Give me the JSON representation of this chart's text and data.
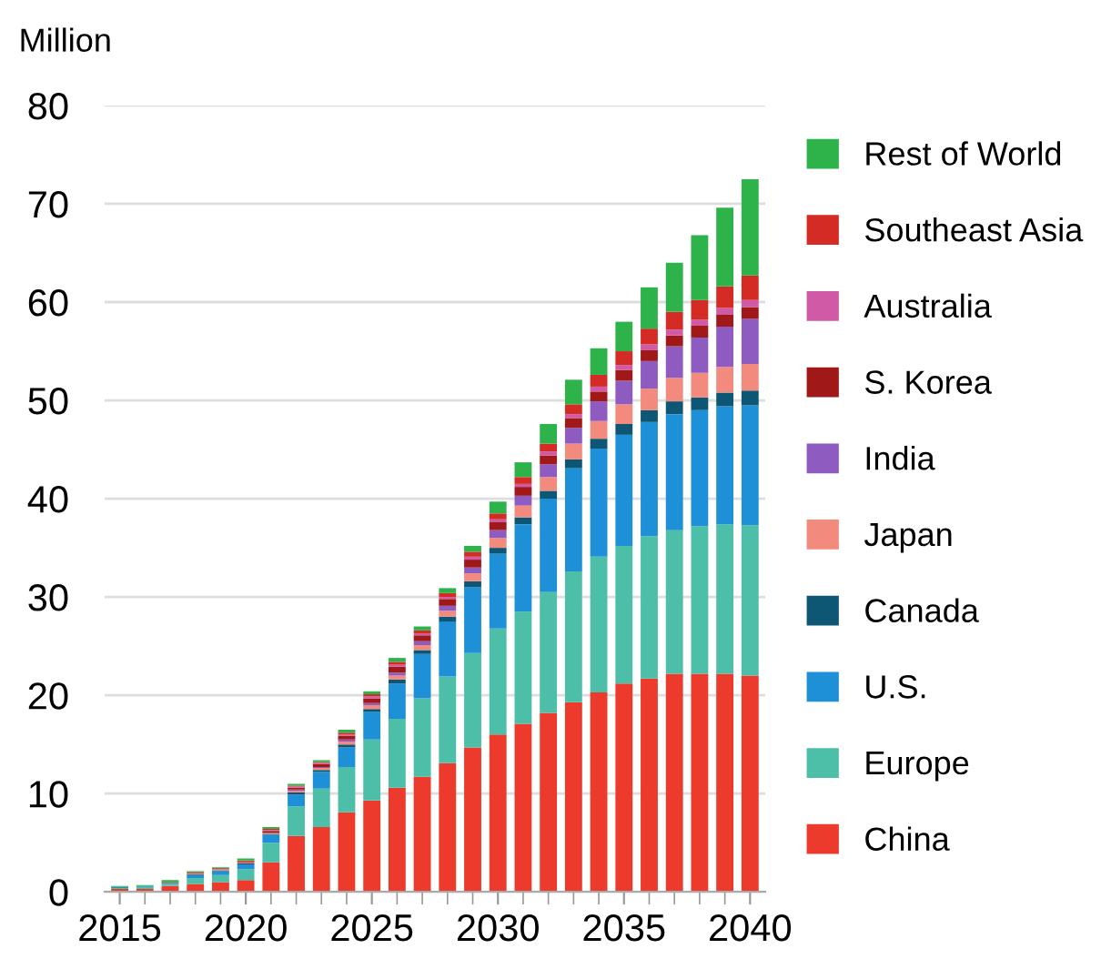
{
  "chart_data": {
    "type": "bar",
    "stacked": true,
    "ylabel": "Million",
    "x": [
      2015,
      2016,
      2017,
      2018,
      2019,
      2020,
      2021,
      2022,
      2023,
      2024,
      2025,
      2026,
      2027,
      2028,
      2029,
      2030,
      2031,
      2032,
      2033,
      2034,
      2035,
      2036,
      2037,
      2038,
      2039,
      2040
    ],
    "xlim": [
      2014.4,
      2040.6
    ],
    "xticks": [
      2015,
      2020,
      2025,
      2030,
      2035,
      2040
    ],
    "ylim": [
      0,
      80
    ],
    "yticks": [
      0,
      10,
      20,
      30,
      40,
      50,
      60,
      70,
      80
    ],
    "grid": "y",
    "legend": "right",
    "series": [
      {
        "name": "China",
        "color": "#ec3a2d",
        "values": [
          0.3,
          0.3,
          0.6,
          0.8,
          1.0,
          1.2,
          3.0,
          5.7,
          6.6,
          8.1,
          9.3,
          10.6,
          11.7,
          13.1,
          14.7,
          16.0,
          17.1,
          18.2,
          19.3,
          20.3,
          21.2,
          21.7,
          22.2,
          22.2,
          22.2,
          22.0
        ]
      },
      {
        "name": "Europe",
        "color": "#4dbfa8",
        "values": [
          0.1,
          0.2,
          0.2,
          0.6,
          0.7,
          1.1,
          2.0,
          3.0,
          3.9,
          4.6,
          6.2,
          7.0,
          8.0,
          8.8,
          9.6,
          10.8,
          11.4,
          12.3,
          13.3,
          13.8,
          14.0,
          14.5,
          14.6,
          15.0,
          15.2,
          15.3
        ]
      },
      {
        "name": "U.S.",
        "color": "#1e90d8",
        "values": [
          0.1,
          0.1,
          0.1,
          0.3,
          0.4,
          0.5,
          0.8,
          1.2,
          1.7,
          2.0,
          2.8,
          3.6,
          4.5,
          5.6,
          6.7,
          7.6,
          8.9,
          9.5,
          10.5,
          11.0,
          11.3,
          11.6,
          11.8,
          11.8,
          12.0,
          12.2
        ]
      },
      {
        "name": "Canada",
        "color": "#0d5775",
        "values": [
          0,
          0,
          0,
          0.1,
          0.1,
          0.1,
          0.1,
          0.2,
          0.2,
          0.3,
          0.3,
          0.4,
          0.4,
          0.5,
          0.6,
          0.6,
          0.7,
          0.8,
          0.9,
          1.0,
          1.1,
          1.2,
          1.3,
          1.3,
          1.4,
          1.5
        ]
      },
      {
        "name": "Japan",
        "color": "#f28a7e",
        "values": [
          0,
          0,
          0,
          0.1,
          0.1,
          0.1,
          0.1,
          0.2,
          0.2,
          0.3,
          0.4,
          0.4,
          0.5,
          0.6,
          0.8,
          1.0,
          1.2,
          1.4,
          1.6,
          1.8,
          2.0,
          2.2,
          2.4,
          2.5,
          2.6,
          2.7
        ]
      },
      {
        "name": "India",
        "color": "#8e5cc0",
        "values": [
          0,
          0,
          0,
          0,
          0,
          0,
          0,
          0.1,
          0.1,
          0.2,
          0.2,
          0.3,
          0.4,
          0.5,
          0.6,
          0.8,
          1.0,
          1.3,
          1.6,
          2.0,
          2.4,
          2.8,
          3.2,
          3.6,
          4.1,
          4.6
        ]
      },
      {
        "name": "S. Korea",
        "color": "#a01818",
        "values": [
          0,
          0,
          0.1,
          0.1,
          0.1,
          0.1,
          0.2,
          0.2,
          0.3,
          0.4,
          0.5,
          0.6,
          0.6,
          0.7,
          0.8,
          0.8,
          0.9,
          0.9,
          1.0,
          1.0,
          1.1,
          1.1,
          1.1,
          1.2,
          1.2,
          1.2
        ]
      },
      {
        "name": "Australia",
        "color": "#d05aa6",
        "values": [
          0,
          0,
          0,
          0,
          0,
          0,
          0.1,
          0.1,
          0.1,
          0.1,
          0.2,
          0.2,
          0.2,
          0.2,
          0.3,
          0.3,
          0.3,
          0.4,
          0.4,
          0.5,
          0.5,
          0.6,
          0.6,
          0.6,
          0.7,
          0.7
        ]
      },
      {
        "name": "Southeast Asia",
        "color": "#d42c25",
        "values": [
          0,
          0,
          0,
          0,
          0,
          0.1,
          0.1,
          0.1,
          0.1,
          0.2,
          0.2,
          0.3,
          0.3,
          0.4,
          0.5,
          0.6,
          0.7,
          0.8,
          1.0,
          1.2,
          1.4,
          1.6,
          1.8,
          2.0,
          2.2,
          2.5
        ]
      },
      {
        "name": "Rest of World",
        "color": "#2db34a",
        "values": [
          0.1,
          0.1,
          0.2,
          0.1,
          0.1,
          0.2,
          0.2,
          0.2,
          0.2,
          0.3,
          0.3,
          0.4,
          0.4,
          0.5,
          0.6,
          1.2,
          1.5,
          2.0,
          2.5,
          2.7,
          3.0,
          4.2,
          5.0,
          6.6,
          8.0,
          9.8
        ]
      }
    ]
  }
}
